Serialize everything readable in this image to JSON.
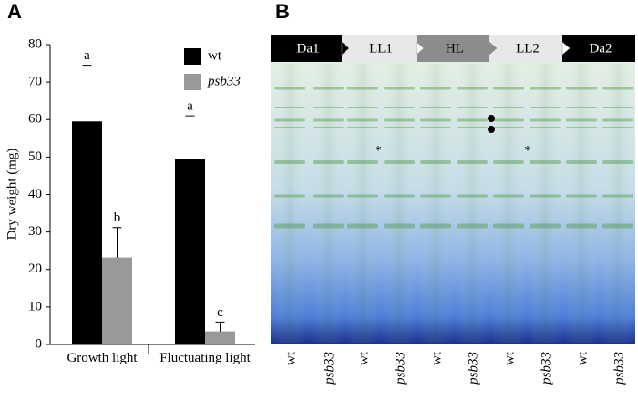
{
  "chart_data": {
    "type": "bar",
    "panel_label": "A",
    "y_label": "Dry weight (mg)",
    "categories": [
      "Growth light",
      "Fluctuating light"
    ],
    "series": [
      {
        "name": "wt",
        "color": "#000000",
        "values": [
          59.5,
          49.5
        ],
        "errors": [
          15,
          11.5
        ],
        "letters": [
          "a",
          "a"
        ]
      },
      {
        "name": "psb33",
        "color": "#999999",
        "values": [
          23.2,
          3.5
        ],
        "errors": [
          8,
          2.5
        ],
        "letters": [
          "b",
          "c"
        ]
      }
    ],
    "ylim": [
      0,
      80
    ],
    "yticks": [
      0,
      10,
      20,
      30,
      40,
      50,
      60,
      70,
      80
    ],
    "legend": "upper-right"
  },
  "gel": {
    "panel_label": "B",
    "phases": [
      "Da1",
      "LL1",
      "HL",
      "LL2",
      "Da2"
    ],
    "lanes": [
      "wt",
      "psb33",
      "wt",
      "psb33",
      "wt",
      "psb33",
      "wt",
      "psb33",
      "wt",
      "psb33"
    ],
    "annotations": [
      "*",
      "*"
    ]
  }
}
